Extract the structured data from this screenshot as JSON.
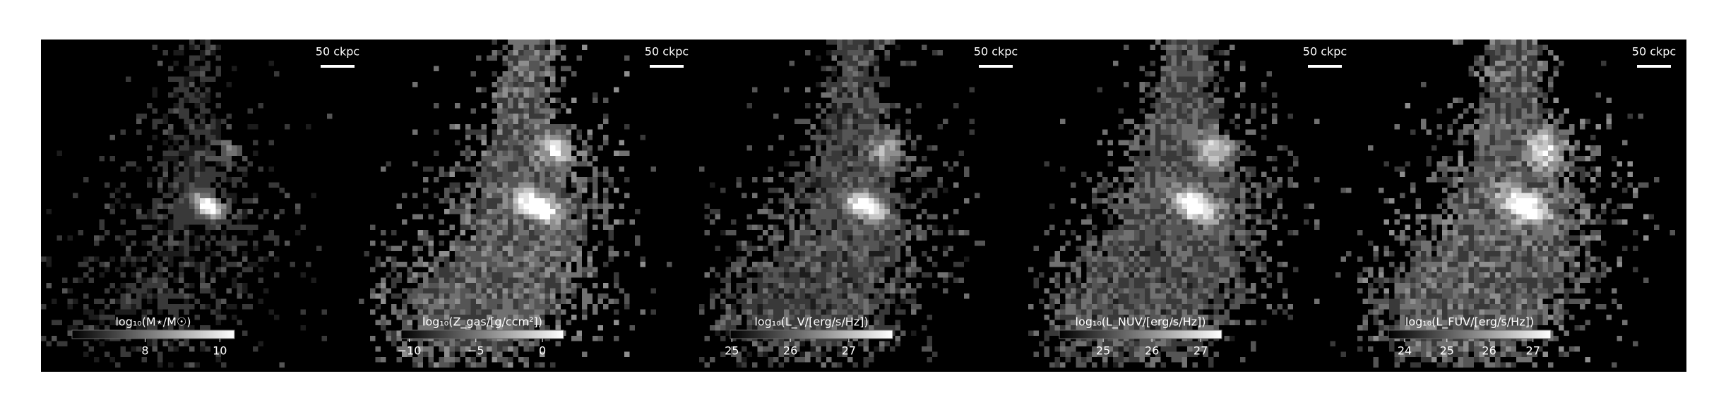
{
  "panels": [
    {
      "scale_bar": "50 ckpc",
      "colorbar_label": "log₁₀(M⋆/M☉)",
      "colorbar_ticks": [
        "8",
        "10"
      ]
    },
    {
      "scale_bar": "50 ckpc",
      "colorbar_label": "log₁₀(Z_gas/[g/ccm²])",
      "colorbar_ticks": [
        "−10",
        "−5",
        "0"
      ]
    },
    {
      "scale_bar": "50 ckpc",
      "colorbar_label": "log₁₀(L_V/[erg/s/Hz])",
      "colorbar_ticks": [
        "25",
        "26",
        "27"
      ]
    },
    {
      "scale_bar": "50 ckpc",
      "colorbar_label": "log₁₀(L_NUV/[erg/s/Hz])",
      "colorbar_ticks": [
        "25",
        "26",
        "27"
      ]
    },
    {
      "scale_bar": "50 ckpc",
      "colorbar_label": "log₁₀(L_FUV/[erg/s/Hz])",
      "colorbar_ticks": [
        "24",
        "25",
        "26",
        "27"
      ]
    }
  ]
}
